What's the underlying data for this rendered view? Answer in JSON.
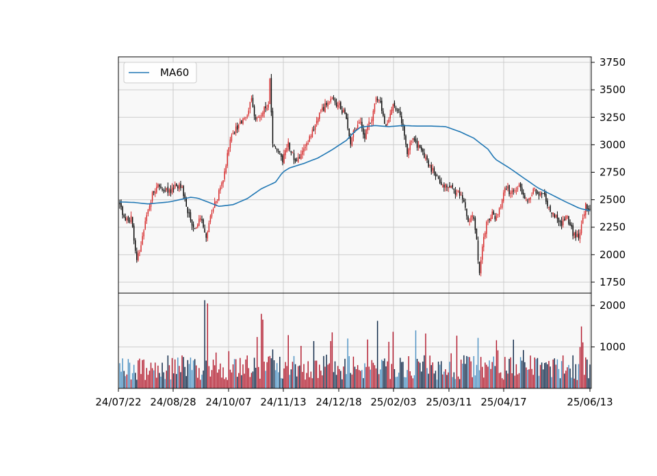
{
  "chart_data": {
    "type": "candlestick",
    "legend": {
      "entries": [
        "MA60"
      ],
      "placement": "top-left"
    },
    "grid": true,
    "colors": {
      "up": "#d62728",
      "down": "#000000",
      "ma": "#1f77b4",
      "volume_up": "#b2182b",
      "volume_down": "#0b2545",
      "volume_alt": "#4a90c2",
      "plot_bg": "#f8f8f8",
      "grid": "#cccccc"
    },
    "x_tick_labels": [
      "24/07/22",
      "24/08/28",
      "24/10/07",
      "24/11/13",
      "24/12/18",
      "25/02/03",
      "25/03/11",
      "25/04/17",
      "25/06/13"
    ],
    "price_axis": {
      "ylim": [
        1650,
        3800
      ],
      "ticks": [
        1750,
        2000,
        2250,
        2500,
        2750,
        3000,
        3250,
        3500,
        3750
      ]
    },
    "volume_axis": {
      "ylim": [
        0,
        2300
      ],
      "ticks": [
        1000,
        2000
      ]
    },
    "ma60_points": [
      [
        0,
        2480
      ],
      [
        10,
        2475
      ],
      [
        20,
        2462
      ],
      [
        35,
        2480
      ],
      [
        50,
        2522
      ],
      [
        55,
        2515
      ],
      [
        65,
        2465
      ],
      [
        70,
        2440
      ],
      [
        80,
        2455
      ],
      [
        90,
        2510
      ],
      [
        100,
        2600
      ],
      [
        110,
        2660
      ],
      [
        115,
        2750
      ],
      [
        120,
        2790
      ],
      [
        130,
        2830
      ],
      [
        140,
        2880
      ],
      [
        150,
        2955
      ],
      [
        160,
        3040
      ],
      [
        165,
        3110
      ],
      [
        170,
        3160
      ],
      [
        180,
        3175
      ],
      [
        190,
        3165
      ],
      [
        200,
        3175
      ],
      [
        210,
        3170
      ],
      [
        220,
        3170
      ],
      [
        230,
        3165
      ],
      [
        240,
        3120
      ],
      [
        250,
        3060
      ],
      [
        260,
        2960
      ],
      [
        265,
        2870
      ],
      [
        275,
        2790
      ],
      [
        285,
        2700
      ],
      [
        295,
        2610
      ],
      [
        305,
        2545
      ],
      [
        315,
        2480
      ],
      [
        325,
        2420
      ],
      [
        332,
        2400
      ]
    ],
    "price_anchors": [
      [
        0,
        2470
      ],
      [
        3,
        2330
      ],
      [
        6,
        2290
      ],
      [
        8,
        2360
      ],
      [
        10,
        2130
      ],
      [
        12,
        1950
      ],
      [
        14,
        2040
      ],
      [
        17,
        2250
      ],
      [
        20,
        2400
      ],
      [
        23,
        2550
      ],
      [
        26,
        2620
      ],
      [
        30,
        2590
      ],
      [
        35,
        2570
      ],
      [
        40,
        2640
      ],
      [
        44,
        2600
      ],
      [
        47,
        2450
      ],
      [
        50,
        2320
      ],
      [
        53,
        2220
      ],
      [
        56,
        2340
      ],
      [
        59,
        2280
      ],
      [
        61,
        2180
      ],
      [
        65,
        2380
      ],
      [
        70,
        2560
      ],
      [
        73,
        2680
      ],
      [
        76,
        2920
      ],
      [
        80,
        3120
      ],
      [
        85,
        3190
      ],
      [
        89,
        3260
      ],
      [
        93,
        3400
      ],
      [
        96,
        3200
      ],
      [
        100,
        3290
      ],
      [
        103,
        3330
      ],
      [
        105,
        3380
      ],
      [
        106,
        3600
      ],
      [
        108,
        3000
      ],
      [
        111,
        2950
      ],
      [
        115,
        2870
      ],
      [
        119,
        3020
      ],
      [
        124,
        2850
      ],
      [
        129,
        2920
      ],
      [
        135,
        3100
      ],
      [
        140,
        3240
      ],
      [
        145,
        3360
      ],
      [
        150,
        3400
      ],
      [
        155,
        3360
      ],
      [
        160,
        3250
      ],
      [
        163,
        3030
      ],
      [
        166,
        3140
      ],
      [
        170,
        3200
      ],
      [
        173,
        3070
      ],
      [
        178,
        3260
      ],
      [
        181,
        3450
      ],
      [
        184,
        3380
      ],
      [
        188,
        3150
      ],
      [
        192,
        3350
      ],
      [
        196,
        3330
      ],
      [
        200,
        3180
      ],
      [
        203,
        2920
      ],
      [
        206,
        3060
      ],
      [
        210,
        3000
      ],
      [
        215,
        2900
      ],
      [
        219,
        2800
      ],
      [
        224,
        2700
      ],
      [
        228,
        2620
      ],
      [
        232,
        2640
      ],
      [
        236,
        2580
      ],
      [
        240,
        2550
      ],
      [
        244,
        2430
      ],
      [
        246,
        2300
      ],
      [
        249,
        2380
      ],
      [
        252,
        2150
      ],
      [
        254,
        1810
      ],
      [
        256,
        2060
      ],
      [
        259,
        2280
      ],
      [
        263,
        2370
      ],
      [
        266,
        2320
      ],
      [
        269,
        2440
      ],
      [
        272,
        2620
      ],
      [
        275,
        2580
      ],
      [
        278,
        2570
      ],
      [
        282,
        2620
      ],
      [
        285,
        2530
      ],
      [
        288,
        2470
      ],
      [
        292,
        2590
      ],
      [
        296,
        2560
      ],
      [
        300,
        2520
      ],
      [
        304,
        2400
      ],
      [
        308,
        2350
      ],
      [
        312,
        2290
      ],
      [
        316,
        2350
      ],
      [
        320,
        2190
      ],
      [
        324,
        2150
      ],
      [
        327,
        2340
      ],
      [
        329,
        2450
      ],
      [
        332,
        2390
      ]
    ],
    "bar_count": 333,
    "notes": "Dense daily candlestick series with ~333 sessions; candle values and volumes are estimated from anchors read off the price axis."
  }
}
